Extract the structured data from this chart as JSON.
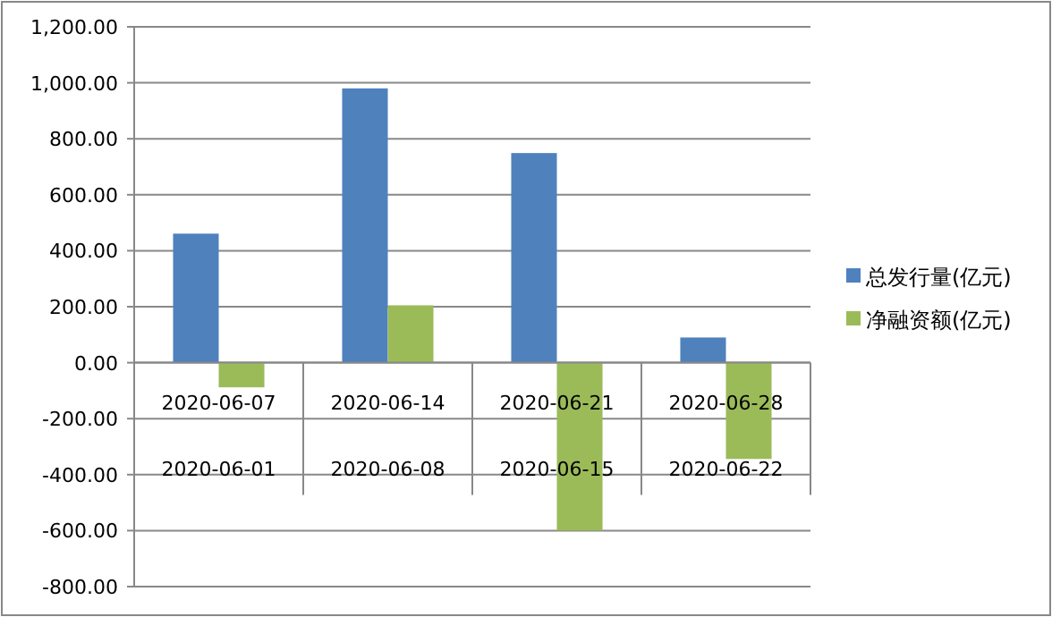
{
  "chart_data": {
    "type": "bar",
    "categories": [
      "2020-06-07\n2020-06-01",
      "2020-06-14\n2020-06-08",
      "2020-06-21\n2020-06-15",
      "2020-06-28\n2020-06-22"
    ],
    "series": [
      {
        "name": "总发行量(亿元)",
        "color": "#4f81bd",
        "values": [
          461,
          980,
          749,
          90
        ]
      },
      {
        "name": "净融资额(亿元)",
        "color": "#9bbb59",
        "values": [
          -88,
          205,
          -600,
          -344
        ]
      }
    ],
    "ylim": [
      -800,
      1200
    ],
    "yticks": [
      {
        "value": -800,
        "label": "-800.00"
      },
      {
        "value": -600,
        "label": "-600.00"
      },
      {
        "value": -400,
        "label": "-400.00"
      },
      {
        "value": -200,
        "label": "-200.00"
      },
      {
        "value": 0,
        "label": "0.00"
      },
      {
        "value": 200,
        "label": "200.00"
      },
      {
        "value": 400,
        "label": "400.00"
      },
      {
        "value": 600,
        "label": "600.00"
      },
      {
        "value": 800,
        "label": "800.00"
      },
      {
        "value": 1000,
        "label": "1,000.00"
      },
      {
        "value": 1200,
        "label": "1,200.00"
      }
    ],
    "grid": "y",
    "legend": "right"
  }
}
